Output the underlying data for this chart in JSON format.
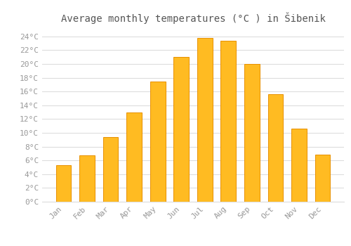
{
  "title": "Average monthly temperatures (°C ) in Šibenik",
  "months": [
    "Jan",
    "Feb",
    "Mar",
    "Apr",
    "May",
    "Jun",
    "Jul",
    "Aug",
    "Sep",
    "Oct",
    "Nov",
    "Dec"
  ],
  "values": [
    5.3,
    6.7,
    9.4,
    13.0,
    17.4,
    21.0,
    23.8,
    23.4,
    20.0,
    15.6,
    10.6,
    6.8
  ],
  "bar_color_main": "#FFBB22",
  "bar_color_edge": "#E89000",
  "bar_color_right": "#F5A800",
  "background_color": "#FFFFFF",
  "grid_color": "#DDDDDD",
  "text_color": "#999999",
  "ylim": [
    0,
    25
  ],
  "ytick_step": 2,
  "title_fontsize": 10,
  "tick_fontsize": 8,
  "bar_width": 0.65
}
